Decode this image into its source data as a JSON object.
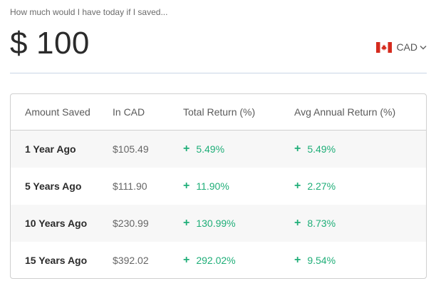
{
  "question": "How much would I have today if I saved...",
  "amount": {
    "symbol": "$",
    "value": "100"
  },
  "currency": {
    "code": "CAD",
    "flag_icon": "canada-flag-icon",
    "caret_icon": "chevron-down-icon"
  },
  "colors": {
    "gain": "#1fae78",
    "divider": "#c9d6e6",
    "flag_red": "#d52b1e"
  },
  "table": {
    "headers": [
      "Amount Saved",
      "In CAD",
      "Total Return (%)",
      "Avg Annual Return (%)"
    ],
    "rows": [
      {
        "label": "1 Year Ago",
        "value": "$105.49",
        "total": "5.49%",
        "annual": "5.49%"
      },
      {
        "label": "5 Years Ago",
        "value": "$111.90",
        "total": "11.90%",
        "annual": "2.27%"
      },
      {
        "label": "10 Years Ago",
        "value": "$230.99",
        "total": "130.99%",
        "annual": "8.73%"
      },
      {
        "label": "15 Years Ago",
        "value": "$392.02",
        "total": "292.02%",
        "annual": "9.54%"
      }
    ],
    "plus_icon": "+"
  }
}
